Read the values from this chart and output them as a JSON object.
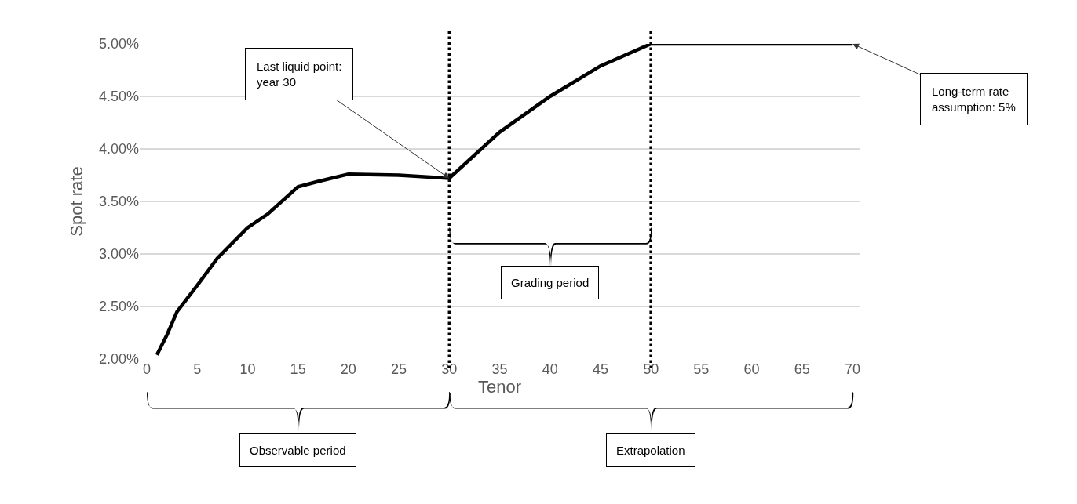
{
  "chart_data": {
    "type": "line",
    "xlabel": "Tenor",
    "ylabel": "Spot rate",
    "x": [
      1,
      2,
      3,
      5,
      7,
      10,
      12,
      15,
      17,
      20,
      25,
      30,
      35,
      40,
      45,
      50,
      70
    ],
    "series": [
      {
        "color": "#000000",
        "values": [
          2.04,
          2.23,
          2.45,
          2.7,
          2.96,
          3.25,
          3.38,
          3.64,
          3.69,
          3.76,
          3.75,
          3.72,
          4.16,
          4.5,
          4.79,
          5.0,
          5.0
        ]
      }
    ],
    "xlim": [
      -0.7,
      70.7
    ],
    "xticks": [
      0,
      5,
      10,
      15,
      20,
      25,
      30,
      35,
      40,
      45,
      50,
      55,
      60,
      65,
      70
    ],
    "ylim": [
      2,
      5
    ],
    "yticks": [
      {
        "value": 2,
        "label": "2.00%"
      },
      {
        "value": 2.5,
        "label": "2.50%"
      },
      {
        "value": 3,
        "label": "3.00%"
      },
      {
        "value": 3.5,
        "label": "3.50%"
      },
      {
        "value": 4,
        "label": "4.00%"
      },
      {
        "value": 4.5,
        "label": "4.50%"
      },
      {
        "value": 5,
        "label": "5.00%"
      }
    ],
    "grid": "y",
    "marker": "none",
    "line_style": "solid",
    "legend": false,
    "ref_lines": [
      {
        "axis": "x",
        "value": 30,
        "color": "#000000",
        "line_style": "dotted"
      },
      {
        "axis": "x",
        "value": 50,
        "color": "#000000",
        "line_style": "dotted"
      }
    ],
    "annotations": [
      {
        "text": "Last liquid point:\nyear 30",
        "x": 30,
        "y": 3.72
      },
      "Long-term rate\nassumption: 5%",
      "Grading period",
      "Observable period",
      "Extrapolation"
    ]
  }
}
